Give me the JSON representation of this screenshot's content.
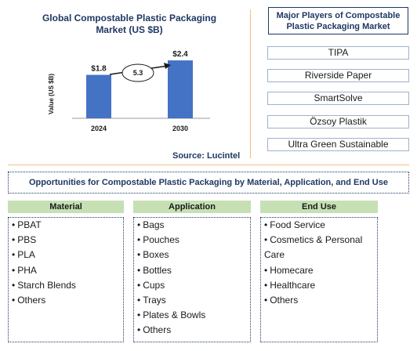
{
  "chart_data": {
    "type": "bar",
    "title": "Global Compostable Plastic Packaging Market (US $B)",
    "ylabel": "Value (US $B)",
    "categories": [
      "2024",
      "2030"
    ],
    "values": [
      1.8,
      2.4
    ],
    "value_labels": [
      "$1.8",
      "$2.4"
    ],
    "cagr_label": "5.3",
    "source": "Source: Lucintel",
    "bar_color": "#4472c4"
  },
  "players": {
    "title": "Major Players of Compostable Plastic Packaging Market",
    "items": [
      "TIPA",
      "Riverside Paper",
      "SmartSolve",
      "Özsoy Plastik",
      "Ultra Green Sustainable"
    ]
  },
  "opportunities": {
    "title": "Opportunities for Compostable Plastic Packaging by Material, Application, and End Use",
    "columns": [
      {
        "header": "Material",
        "items": [
          "PBAT",
          "PBS",
          "PLA",
          "PHA",
          "Starch Blends",
          "Others"
        ]
      },
      {
        "header": "Application",
        "items": [
          "Bags",
          "Pouches",
          "Boxes",
          "Bottles",
          "Cups",
          "Trays",
          "Plates & Bowls",
          "Others"
        ]
      },
      {
        "header": "End Use",
        "items": [
          "Food Service",
          "Cosmetics & Personal Care",
          "Homecare",
          "Healthcare",
          "Others"
        ]
      }
    ]
  }
}
